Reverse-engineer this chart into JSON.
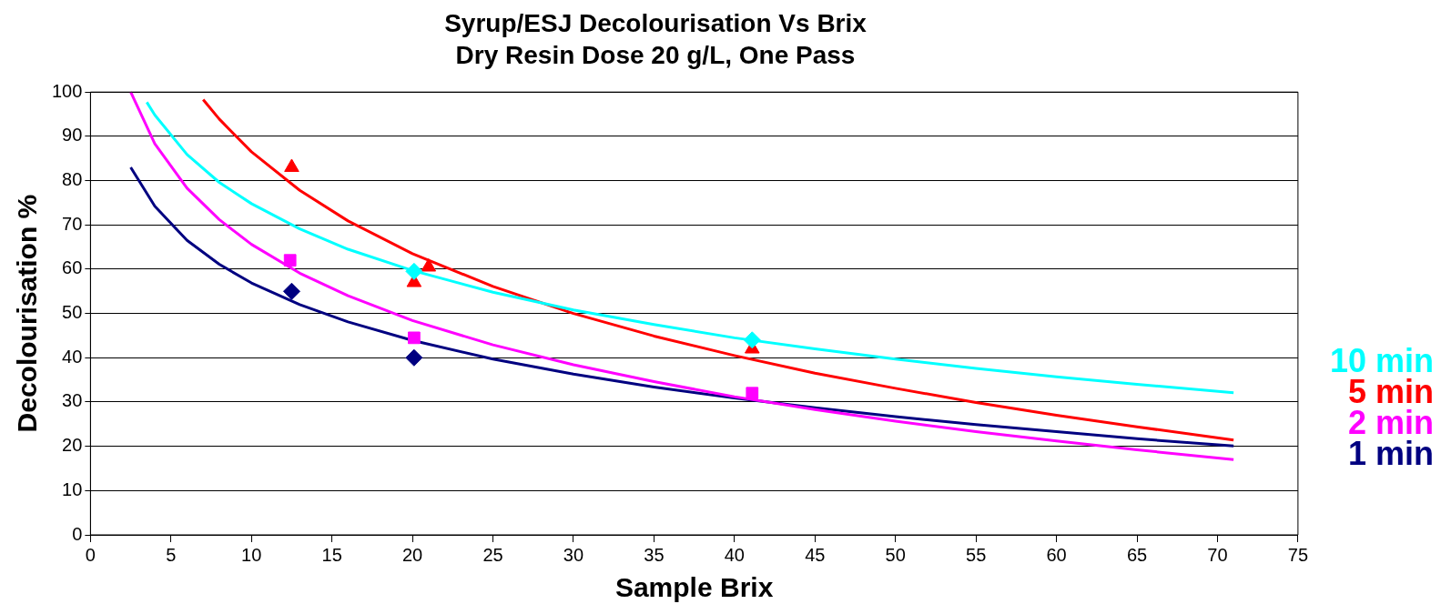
{
  "chart_data": {
    "type": "scatter",
    "title": "Syrup/ESJ Decolourisation Vs Brix",
    "subtitle": "Dry Resin Dose 20 g/L, One Pass",
    "xlabel": "Sample Brix",
    "ylabel": "Decolourisation %",
    "xlim": [
      0,
      75
    ],
    "xticks": [
      0,
      5,
      10,
      15,
      20,
      25,
      30,
      35,
      40,
      45,
      50,
      55,
      60,
      65,
      70,
      75
    ],
    "ylim": [
      0,
      100
    ],
    "yticks": [
      0,
      10,
      20,
      30,
      40,
      50,
      60,
      70,
      80,
      90,
      100
    ],
    "grid": "y",
    "legend": "right",
    "series": [
      {
        "name": "10 min",
        "color": "#00ffff",
        "marker": "diamond",
        "x": [
          20.1,
          41.1
        ],
        "values": [
          59.5,
          44
        ]
      },
      {
        "name": "5 min",
        "color": "#ff0000",
        "marker": "triangle",
        "x": [
          12.5,
          20.1,
          21,
          41.1
        ],
        "values": [
          83,
          57,
          60.5,
          42
        ]
      },
      {
        "name": "2 min",
        "color": "#ff00ff",
        "marker": "square",
        "x": [
          12.4,
          20.1,
          41.1
        ],
        "values": [
          62,
          44.5,
          32
        ]
      },
      {
        "name": "1 min",
        "color": "#000080",
        "marker": "diamond",
        "x": [
          12.5,
          20.1
        ],
        "values": [
          55,
          40
        ]
      },
      {
        "type": "line",
        "color": "#00ffff",
        "marker": "none",
        "x": [
          3.5,
          4,
          6,
          8,
          10,
          13,
          16,
          20,
          25,
          30,
          35,
          40,
          45,
          50,
          55,
          60,
          65,
          71
        ],
        "values": [
          97.7,
          94.8,
          85.9,
          79.6,
          74.8,
          69.1,
          64.5,
          59.7,
          54.8,
          50.8,
          47.5,
          44.5,
          42.0,
          39.7,
          37.6,
          35.7,
          34.0,
          32.1
        ]
      },
      {
        "type": "line",
        "color": "#ff0000",
        "marker": "none",
        "x": [
          7,
          8,
          10,
          13,
          16,
          20,
          25,
          30,
          35,
          40,
          45,
          50,
          55,
          60,
          65,
          71
        ],
        "values": [
          98.3,
          93.9,
          86.5,
          77.8,
          70.9,
          63.5,
          56.1,
          50.0,
          44.9,
          40.5,
          36.5,
          33.1,
          29.9,
          27.0,
          24.4,
          21.4
        ]
      },
      {
        "type": "line",
        "color": "#ff00ff",
        "marker": "none",
        "x": [
          2.5,
          4,
          6,
          8,
          10,
          13,
          16,
          20,
          25,
          30,
          35,
          40,
          45,
          50,
          55,
          60,
          65,
          71
        ],
        "values": [
          100,
          88.3,
          78.3,
          71.2,
          65.6,
          59.1,
          54.0,
          48.4,
          42.9,
          38.4,
          34.6,
          31.2,
          28.3,
          25.7,
          23.3,
          21.2,
          19.2,
          17.0
        ]
      },
      {
        "type": "line",
        "color": "#000080",
        "marker": "none",
        "x": [
          2.5,
          4,
          6,
          8,
          10,
          13,
          16,
          20,
          25,
          30,
          35,
          40,
          45,
          50,
          55,
          60,
          65,
          71
        ],
        "values": [
          83,
          74.2,
          66.5,
          61.1,
          56.9,
          52.0,
          48.1,
          43.9,
          39.7,
          36.3,
          33.4,
          30.9,
          28.7,
          26.7,
          24.9,
          23.3,
          21.7,
          20.1
        ]
      }
    ]
  }
}
